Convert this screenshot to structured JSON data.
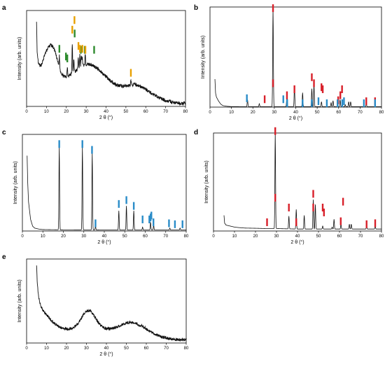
{
  "chart_data": [
    {
      "panel": "a",
      "type": "line",
      "xlabel": "2 θ (°)",
      "ylabel": "Intensity (arb. units)",
      "xlim": [
        0,
        80
      ],
      "xticks": [
        0,
        10,
        20,
        30,
        40,
        50,
        60,
        70,
        80
      ],
      "ylim": [
        0,
        1
      ],
      "series": [
        {
          "x": [
            5,
            5.3,
            6,
            7,
            8,
            9,
            10,
            11,
            12,
            13,
            14,
            15,
            16,
            17,
            18,
            19,
            20,
            22,
            24,
            26,
            28,
            30,
            32,
            34,
            36,
            38,
            40,
            42,
            44,
            46,
            48,
            50,
            52,
            54,
            56,
            58,
            60,
            62,
            64,
            66,
            68,
            70,
            72,
            74,
            76,
            78,
            80
          ],
          "y": [
            0.9,
            0.55,
            0.44,
            0.42,
            0.46,
            0.53,
            0.58,
            0.62,
            0.64,
            0.63,
            0.59,
            0.52,
            0.44,
            0.37,
            0.33,
            0.31,
            0.31,
            0.33,
            0.36,
            0.39,
            0.42,
            0.44,
            0.44,
            0.42,
            0.39,
            0.35,
            0.31,
            0.27,
            0.24,
            0.22,
            0.21,
            0.21,
            0.22,
            0.23,
            0.22,
            0.2,
            0.18,
            0.15,
            0.12,
            0.1,
            0.08,
            0.06,
            0.05,
            0.04,
            0.035,
            0.03,
            0.03
          ]
        }
      ],
      "peaks": [
        [
          16.5,
          0.12
        ],
        [
          20.5,
          0.1
        ],
        [
          23,
          0.3
        ],
        [
          23.8,
          0.14
        ],
        [
          26,
          0.12
        ],
        [
          26.8,
          0.14
        ],
        [
          27.5,
          0.12
        ],
        [
          28,
          0.1
        ],
        [
          29.5,
          0.1
        ],
        [
          52.5,
          0.05
        ]
      ],
      "markers": [
        {
          "color": "#2e8b2e",
          "x": [
            16.5,
            19.8,
            20.5,
            24.2,
            27.3,
            29.3,
            34.0
          ],
          "y": [
            0.56,
            0.48,
            0.46,
            0.72,
            0.55,
            0.55,
            0.55
          ]
        },
        {
          "color": "#e8a000",
          "x": [
            23.0,
            24.1,
            26.1,
            26.9,
            28.1,
            29.6,
            52.5
          ],
          "y": [
            0.76,
            0.86,
            0.59,
            0.56,
            0.56,
            0.55,
            0.31
          ]
        }
      ]
    },
    {
      "panel": "b",
      "type": "line",
      "xlabel": "2 θ (°)",
      "ylabel": "Intensity (arb. units)",
      "xlim": [
        0,
        80
      ],
      "xticks": [
        0,
        10,
        20,
        30,
        40,
        50,
        60,
        70,
        80
      ],
      "ylim": [
        0,
        1
      ],
      "series": [
        {
          "x": [
            2.3,
            2.6,
            3,
            4,
            5,
            6,
            8,
            10,
            20,
            40,
            60,
            80
          ],
          "y": [
            0.28,
            0.14,
            0.1,
            0.06,
            0.03,
            0.015,
            0.008,
            0.005,
            0.004,
            0.004,
            0.004,
            0.004
          ]
        }
      ],
      "peaks": [
        [
          17.5,
          0.07
        ],
        [
          23,
          0.03
        ],
        [
          29.4,
          0.98
        ],
        [
          35.9,
          0.14
        ],
        [
          39.4,
          0.2
        ],
        [
          43.2,
          0.14
        ],
        [
          47.5,
          0.18
        ],
        [
          48.5,
          0.22
        ],
        [
          52,
          0.05
        ],
        [
          56.5,
          0.04
        ],
        [
          57.4,
          0.06
        ],
        [
          60.7,
          0.07
        ],
        [
          63.1,
          0.02
        ],
        [
          64.7,
          0.05
        ],
        [
          65.6,
          0.05
        ],
        [
          72.9,
          0.03
        ]
      ],
      "markers": [
        {
          "color": "#d8202a",
          "x": [
            25.5,
            29.4,
            29.4,
            35.9,
            39.4,
            47.5,
            48.5,
            52.0,
            52.6,
            59.8,
            60.8,
            61.6,
            72.9,
            77.0
          ],
          "y": [
            0.04,
            0.95,
            0.2,
            0.08,
            0.14,
            0.26,
            0.2,
            0.16,
            0.14,
            0.03,
            0.08,
            0.14,
            0.02,
            0.02
          ]
        },
        {
          "color": "#2a8cc8",
          "x": [
            17.2,
            34.2,
            36.0,
            43.2,
            47.5,
            50.6,
            54.5,
            59.5,
            61.7,
            62.5,
            71.8,
            77.0
          ],
          "y": [
            0.05,
            0.04,
            0.0,
            0.0,
            0.0,
            0.02,
            0.0,
            0.0,
            0.0,
            0.02,
            0.0,
            0.0
          ]
        }
      ]
    },
    {
      "panel": "c",
      "type": "line",
      "xlabel": "2 θ (°)",
      "ylabel": "Intensity (arb. units)",
      "xlim": [
        0,
        80
      ],
      "xticks": [
        0,
        10,
        20,
        30,
        40,
        50,
        60,
        70,
        80
      ],
      "ylim": [
        0,
        1
      ],
      "series": [
        {
          "x": [
            2.3,
            2.6,
            3,
            4,
            5,
            6,
            8,
            10,
            20,
            40,
            60,
            80
          ],
          "y": [
            0.78,
            0.5,
            0.3,
            0.12,
            0.05,
            0.03,
            0.02,
            0.015,
            0.012,
            0.01,
            0.01,
            0.01
          ]
        }
      ],
      "peaks": [
        [
          18.0,
          0.86
        ],
        [
          29.3,
          0.86
        ],
        [
          34.1,
          0.8
        ],
        [
          35.7,
          0.04
        ],
        [
          47.1,
          0.2
        ],
        [
          50.8,
          0.25
        ],
        [
          54.4,
          0.2
        ],
        [
          58.7,
          0.03
        ],
        [
          62.6,
          0.08
        ],
        [
          64.1,
          0.05
        ],
        [
          72.0,
          0.02
        ],
        [
          77.0,
          0.02
        ]
      ],
      "markers": [
        {
          "color": "#2a8cc8",
          "x": [
            18.0,
            29.3,
            34.0,
            35.7,
            47.1,
            50.8,
            54.4,
            58.7,
            62.0,
            62.6,
            63.0,
            64.0,
            71.6,
            74.5,
            78.2
          ],
          "y": [
            0.86,
            0.86,
            0.8,
            0.04,
            0.24,
            0.28,
            0.22,
            0.08,
            0.08,
            0.1,
            0.12,
            0.05,
            0.04,
            0.03,
            0.03
          ]
        }
      ]
    },
    {
      "panel": "d",
      "type": "line",
      "xlabel": "2 θ (°)",
      "ylabel": "Intensity (arb. units)",
      "xlim": [
        0,
        80
      ],
      "xticks": [
        0,
        10,
        20,
        30,
        40,
        50,
        60,
        70,
        80
      ],
      "ylim": [
        0,
        1
      ],
      "series": [
        {
          "x": [
            5.0,
            5.3,
            6,
            8,
            10,
            12,
            15,
            20,
            25,
            30,
            40,
            50,
            60,
            70,
            80
          ],
          "y": [
            0.16,
            0.08,
            0.06,
            0.05,
            0.04,
            0.035,
            0.03,
            0.028,
            0.025,
            0.025,
            0.02,
            0.02,
            0.02,
            0.02,
            0.02
          ]
        }
      ],
      "peaks": [
        [
          29.4,
          0.98
        ],
        [
          35.9,
          0.13
        ],
        [
          39.4,
          0.2
        ],
        [
          43.2,
          0.14
        ],
        [
          47.5,
          0.3
        ],
        [
          48.5,
          0.25
        ],
        [
          52,
          0.03
        ],
        [
          56.5,
          0.02
        ],
        [
          57.4,
          0.1
        ],
        [
          60.7,
          0.05
        ],
        [
          64.7,
          0.05
        ],
        [
          65.6,
          0.05
        ],
        [
          72.9,
          0.03
        ],
        [
          77.0,
          0.03
        ]
      ],
      "markers": [
        {
          "color": "#d8202a",
          "x": [
            25.5,
            29.4,
            29.4,
            35.9,
            39.4,
            47.5,
            47.5,
            52.0,
            52.6,
            60.6,
            61.7,
            72.9,
            77.0
          ],
          "y": [
            0.05,
            0.98,
            0.3,
            0.2,
            0.05,
            0.34,
            0.2,
            0.2,
            0.15,
            0.06,
            0.26,
            0.03,
            0.04
          ]
        }
      ]
    },
    {
      "panel": "e",
      "type": "line",
      "xlabel": "2 θ (°)",
      "ylabel": "Intensity (arb. units)",
      "xlim": [
        0,
        80
      ],
      "xticks": [
        0,
        10,
        20,
        30,
        40,
        50,
        60,
        70,
        80
      ],
      "ylim": [
        0,
        1
      ],
      "series": [
        {
          "x": [
            5,
            5.3,
            6,
            7,
            8,
            10,
            12,
            14,
            16,
            18,
            20,
            22,
            24,
            26,
            28,
            30,
            32,
            34,
            36,
            38,
            40,
            42,
            44,
            46,
            48,
            50,
            52,
            54,
            56,
            58,
            60,
            62,
            64,
            66,
            68,
            70,
            72,
            74,
            76,
            78,
            80
          ],
          "y": [
            0.94,
            0.72,
            0.55,
            0.45,
            0.4,
            0.34,
            0.28,
            0.23,
            0.2,
            0.18,
            0.17,
            0.17,
            0.19,
            0.24,
            0.32,
            0.38,
            0.38,
            0.32,
            0.24,
            0.19,
            0.17,
            0.17,
            0.18,
            0.2,
            0.22,
            0.24,
            0.25,
            0.24,
            0.22,
            0.2,
            0.17,
            0.14,
            0.11,
            0.09,
            0.07,
            0.06,
            0.05,
            0.045,
            0.04,
            0.04,
            0.04
          ]
        }
      ],
      "peaks": [],
      "markers": []
    }
  ],
  "panel_letters": [
    "a",
    "b",
    "c",
    "d",
    "e"
  ],
  "colors": {
    "line": "#111111",
    "frame": "#000000",
    "green": "#2e8b2e",
    "orange": "#e8a000",
    "red": "#d8202a",
    "blue": "#2a8cc8"
  }
}
